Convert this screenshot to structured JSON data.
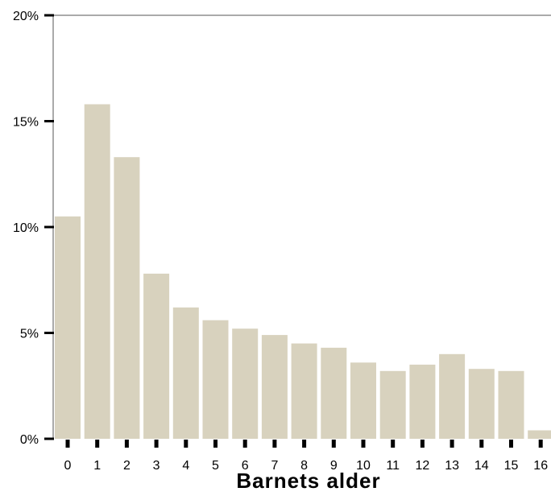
{
  "colors": {
    "bar": "#d8d2be",
    "axis": "#000000",
    "frame": "#555555",
    "background": "#ffffff"
  },
  "chart_data": {
    "type": "bar",
    "xlabel": "Barnets alder",
    "ylabel": "",
    "categories": [
      "0",
      "1",
      "2",
      "3",
      "4",
      "5",
      "6",
      "7",
      "8",
      "9",
      "10",
      "11",
      "12",
      "13",
      "14",
      "15",
      "16"
    ],
    "values": [
      10.5,
      15.8,
      13.3,
      7.8,
      6.2,
      5.6,
      5.2,
      4.9,
      4.5,
      4.3,
      3.6,
      3.2,
      3.5,
      4.0,
      3.3,
      3.2,
      0.4
    ],
    "y_ticks": [
      "0%",
      "5%",
      "10%",
      "15%",
      "20%"
    ],
    "y_tick_values": [
      0,
      5,
      10,
      15,
      20
    ],
    "ylim": [
      0,
      20
    ],
    "grid": false,
    "legend": "none"
  }
}
